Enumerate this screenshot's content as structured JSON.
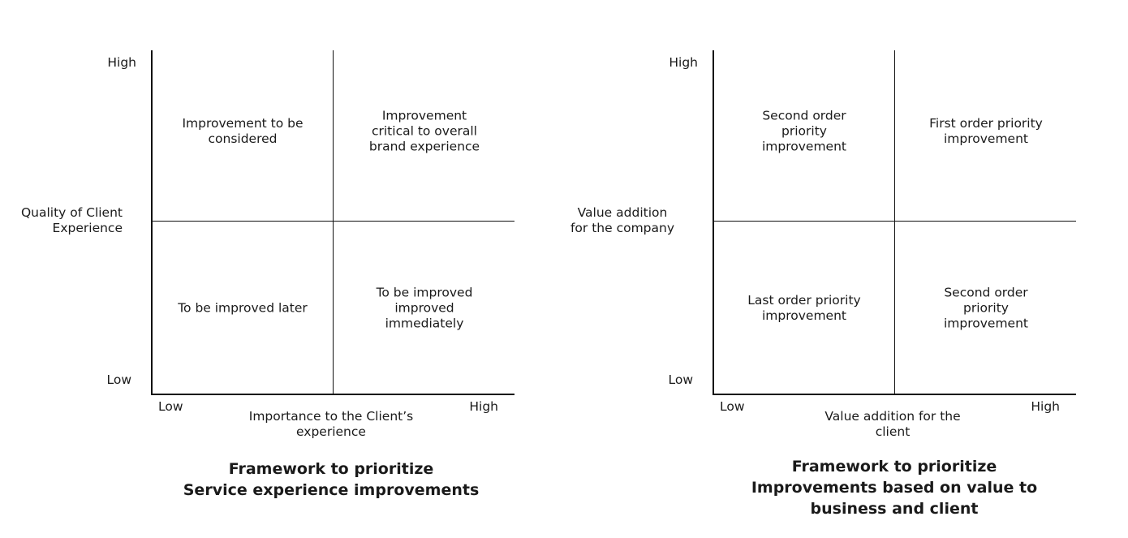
{
  "matrices": [
    {
      "y_high": "High",
      "y_low": "Low",
      "x_low": "Low",
      "x_high": "High",
      "y_title_line1": "Quality of Client",
      "y_title_line2": "Experience",
      "x_title_line1": "Importance to the Client’s",
      "x_title_line2": "experience",
      "quadrants": {
        "top_left": [
          "Improvement to be",
          "considered"
        ],
        "top_right": [
          "Improvement",
          "critical to overall",
          "brand experience"
        ],
        "bottom_left": [
          "To be improved later"
        ],
        "bottom_right": [
          "To be improved",
          "improved",
          "immediately"
        ]
      },
      "caption_line1": "Framework to prioritize",
      "caption_line2": "Service experience improvements",
      "caption_line3": ""
    },
    {
      "y_high": "High",
      "y_low": "Low",
      "x_low": "Low",
      "x_high": "High",
      "y_title_line1": "Value addition",
      "y_title_line2": "for the company",
      "x_title_line1": "Value addition for the",
      "x_title_line2": "client",
      "quadrants": {
        "top_left": [
          "Second order",
          "priority",
          "improvement"
        ],
        "top_right": [
          "First order priority",
          "improvement"
        ],
        "bottom_left": [
          "Last order priority",
          "improvement"
        ],
        "bottom_right": [
          "Second order",
          "priority",
          "improvement"
        ]
      },
      "caption_line1": "Framework to prioritize",
      "caption_line2": "Improvements based on value to",
      "caption_line3": "business and client"
    }
  ]
}
